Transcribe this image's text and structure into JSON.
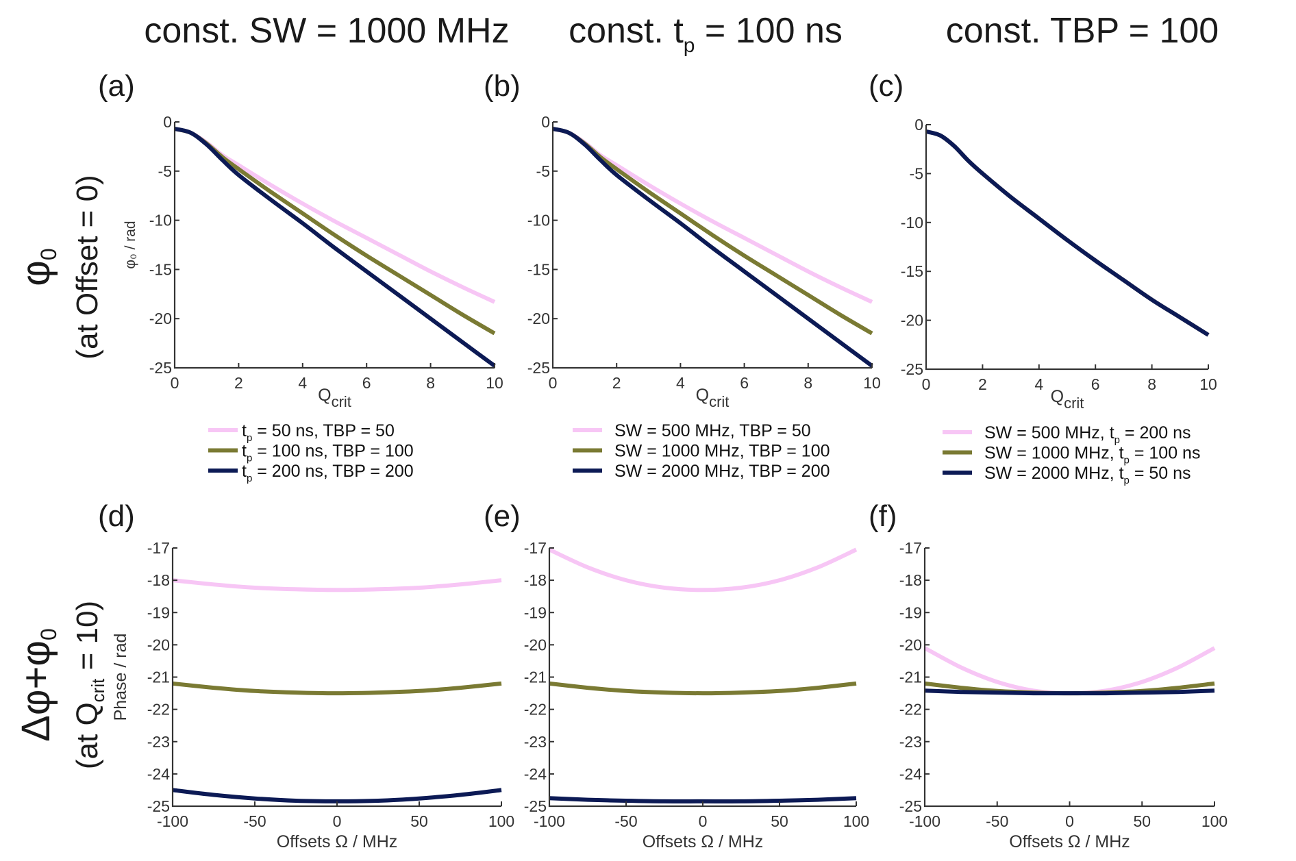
{
  "column_titles": [
    {
      "text": "const. SW = 1000 MHz"
    },
    {
      "pre": "const. t",
      "sub": "p",
      "post": " = 100 ns"
    },
    {
      "text": "const. TBP = 100"
    }
  ],
  "row_labels": [
    {
      "main": "φ",
      "main_sub": "0",
      "sub": "(at Offset = 0)"
    },
    {
      "main": "Δφ+φ",
      "main_sub": "0",
      "sub_pre": "(at Q",
      "sub_sub": "crit",
      "sub_post": " = 10)"
    }
  ],
  "colors": {
    "pink": "#f7c6f5",
    "olive": "#7a7a33",
    "navy": "#0c1a55"
  },
  "chart_data": [
    {
      "id": "a",
      "letter": "(a)",
      "type": "line",
      "xlabel": "Q",
      "xlabel_sub": "crit",
      "ylabel": "φ₀ / rad",
      "xlim": [
        0,
        10
      ],
      "ylim": [
        -25,
        0
      ],
      "xticks": [
        0,
        2,
        4,
        6,
        8,
        10
      ],
      "yticks": [
        0,
        -5,
        -10,
        -15,
        -20,
        -25
      ],
      "x": [
        0,
        0.5,
        1,
        1.5,
        2,
        3,
        4,
        5,
        6,
        7,
        8,
        9,
        10
      ],
      "series": [
        {
          "name": "t_p = 50 ns,   TBP = 50",
          "color": "pink",
          "legend": {
            "pre": "t",
            "sub": "p",
            "post": " = 50 ns,   TBP = 50"
          },
          "values": [
            -0.7,
            -1.1,
            -2.1,
            -3.4,
            -4.4,
            -6.4,
            -8.3,
            -10.1,
            -11.8,
            -13.5,
            -15.2,
            -16.8,
            -18.3
          ]
        },
        {
          "name": "t_p = 100 ns, TBP = 100",
          "color": "olive",
          "legend": {
            "pre": "t",
            "sub": "p",
            "post": " = 100 ns, TBP = 100"
          },
          "values": [
            -0.7,
            -1.1,
            -2.2,
            -3.6,
            -4.8,
            -7.1,
            -9.3,
            -11.5,
            -13.6,
            -15.6,
            -17.6,
            -19.6,
            -21.5
          ]
        },
        {
          "name": "t_p = 200 ns, TBP = 200",
          "color": "navy",
          "legend": {
            "pre": "t",
            "sub": "p",
            "post": " = 200 ns, TBP = 200"
          },
          "values": [
            -0.7,
            -1.1,
            -2.3,
            -3.9,
            -5.4,
            -7.9,
            -10.3,
            -12.8,
            -15.2,
            -17.6,
            -20.0,
            -22.4,
            -24.8
          ]
        }
      ]
    },
    {
      "id": "b",
      "letter": "(b)",
      "type": "line",
      "xlabel": "Q",
      "xlabel_sub": "crit",
      "ylabel": "",
      "xlim": [
        0,
        10
      ],
      "ylim": [
        -25,
        0
      ],
      "xticks": [
        0,
        2,
        4,
        6,
        8,
        10
      ],
      "yticks": [
        0,
        -5,
        -10,
        -15,
        -20,
        -25
      ],
      "x": [
        0,
        0.5,
        1,
        1.5,
        2,
        3,
        4,
        5,
        6,
        7,
        8,
        9,
        10
      ],
      "series": [
        {
          "name": "SW = 500 MHz,   TBP = 50",
          "color": "pink",
          "legend": {
            "pre": "SW = 500 MHz,   TBP = 50"
          },
          "values": [
            -0.7,
            -1.1,
            -2.1,
            -3.4,
            -4.4,
            -6.4,
            -8.3,
            -10.1,
            -11.8,
            -13.5,
            -15.2,
            -16.8,
            -18.3
          ]
        },
        {
          "name": "SW = 1000 MHz, TBP = 100",
          "color": "olive",
          "legend": {
            "pre": "SW = 1000 MHz, TBP = 100"
          },
          "values": [
            -0.7,
            -1.1,
            -2.2,
            -3.6,
            -4.8,
            -7.1,
            -9.3,
            -11.5,
            -13.6,
            -15.6,
            -17.6,
            -19.6,
            -21.5
          ]
        },
        {
          "name": "SW = 2000 MHz, TBP = 200",
          "color": "navy",
          "legend": {
            "pre": "SW = 2000 MHz, TBP = 200"
          },
          "values": [
            -0.7,
            -1.1,
            -2.3,
            -3.9,
            -5.4,
            -7.9,
            -10.3,
            -12.8,
            -15.2,
            -17.6,
            -20.0,
            -22.4,
            -24.8
          ]
        }
      ]
    },
    {
      "id": "c",
      "letter": "(c)",
      "type": "line",
      "xlabel": "Q",
      "xlabel_sub": "crit",
      "ylabel": "",
      "xlim": [
        0,
        10
      ],
      "ylim": [
        -25,
        0
      ],
      "xticks": [
        0,
        2,
        4,
        6,
        8,
        10
      ],
      "yticks": [
        0,
        -5,
        -10,
        -15,
        -20,
        -25
      ],
      "x": [
        0,
        0.5,
        1,
        1.5,
        2,
        3,
        4,
        5,
        6,
        7,
        8,
        9,
        10
      ],
      "series": [
        {
          "name": "SW = 500 MHz,   t_p = 200 ns",
          "color": "pink",
          "legend": {
            "pre": "SW = 500 MHz,   t",
            "sub": "p",
            "post": " = 200 ns"
          },
          "values": [
            -0.7,
            -1.1,
            -2.2,
            -3.7,
            -5.0,
            -7.4,
            -9.6,
            -11.8,
            -13.9,
            -15.9,
            -17.9,
            -19.7,
            -21.5
          ]
        },
        {
          "name": "SW = 1000 MHz, t_p = 100 ns",
          "color": "olive",
          "legend": {
            "pre": "SW = 1000 MHz, t",
            "sub": "p",
            "post": " = 100 ns"
          },
          "values": [
            -0.7,
            -1.1,
            -2.2,
            -3.7,
            -5.0,
            -7.4,
            -9.6,
            -11.8,
            -13.9,
            -15.9,
            -17.9,
            -19.7,
            -21.5
          ]
        },
        {
          "name": "SW = 2000 MHz, t_p = 50 ns",
          "color": "navy",
          "legend": {
            "pre": "SW = 2000 MHz, t",
            "sub": "p",
            "post": " = 50 ns"
          },
          "values": [
            -0.7,
            -1.1,
            -2.2,
            -3.7,
            -5.0,
            -7.4,
            -9.6,
            -11.8,
            -13.9,
            -15.9,
            -17.9,
            -19.7,
            -21.5
          ]
        }
      ]
    },
    {
      "id": "d",
      "letter": "(d)",
      "type": "line",
      "xlabel": "Offsets Ω / MHz",
      "ylabel": "Phase / rad",
      "xlim": [
        -100,
        100
      ],
      "ylim": [
        -25,
        -17
      ],
      "xticks": [
        -100,
        -50,
        0,
        50,
        100
      ],
      "yticks": [
        -17,
        -18,
        -19,
        -20,
        -21,
        -22,
        -23,
        -24,
        -25
      ],
      "x": [
        -100,
        -75,
        -50,
        -25,
        0,
        25,
        50,
        75,
        100
      ],
      "series": [
        {
          "color": "pink",
          "values": [
            -18.0,
            -18.13,
            -18.23,
            -18.28,
            -18.3,
            -18.28,
            -18.23,
            -18.13,
            -18.0
          ]
        },
        {
          "color": "olive",
          "values": [
            -21.2,
            -21.33,
            -21.43,
            -21.48,
            -21.5,
            -21.48,
            -21.43,
            -21.33,
            -21.2
          ]
        },
        {
          "color": "navy",
          "values": [
            -24.5,
            -24.65,
            -24.76,
            -24.83,
            -24.85,
            -24.83,
            -24.76,
            -24.65,
            -24.5
          ]
        }
      ]
    },
    {
      "id": "e",
      "letter": "(e)",
      "type": "line",
      "xlabel": "Offsets Ω / MHz",
      "ylabel": "",
      "xlim": [
        -100,
        100
      ],
      "ylim": [
        -25,
        -17
      ],
      "xticks": [
        -100,
        -50,
        0,
        50,
        100
      ],
      "yticks": [
        -17,
        -18,
        -19,
        -20,
        -21,
        -22,
        -23,
        -24,
        -25
      ],
      "x": [
        -100,
        -75,
        -50,
        -25,
        0,
        25,
        50,
        75,
        100
      ],
      "series": [
        {
          "color": "pink",
          "values": [
            -17.05,
            -17.6,
            -18.0,
            -18.23,
            -18.3,
            -18.23,
            -18.0,
            -17.6,
            -17.05
          ]
        },
        {
          "color": "olive",
          "values": [
            -21.2,
            -21.33,
            -21.43,
            -21.48,
            -21.5,
            -21.48,
            -21.43,
            -21.33,
            -21.2
          ]
        },
        {
          "color": "navy",
          "values": [
            -24.75,
            -24.8,
            -24.83,
            -24.85,
            -24.85,
            -24.85,
            -24.83,
            -24.8,
            -24.75
          ]
        }
      ]
    },
    {
      "id": "f",
      "letter": "(f)",
      "type": "line",
      "xlabel": "Offsets Ω / MHz",
      "ylabel": "",
      "xlim": [
        -100,
        100
      ],
      "ylim": [
        -25,
        -17
      ],
      "xticks": [
        -100,
        -50,
        0,
        50,
        100
      ],
      "yticks": [
        -17,
        -18,
        -19,
        -20,
        -21,
        -22,
        -23,
        -24,
        -25
      ],
      "x": [
        -100,
        -75,
        -50,
        -25,
        0,
        25,
        50,
        75,
        100
      ],
      "series": [
        {
          "color": "pink",
          "values": [
            -20.1,
            -20.7,
            -21.15,
            -21.42,
            -21.5,
            -21.42,
            -21.15,
            -20.7,
            -20.1
          ]
        },
        {
          "color": "olive",
          "values": [
            -21.2,
            -21.33,
            -21.43,
            -21.48,
            -21.5,
            -21.48,
            -21.43,
            -21.33,
            -21.2
          ]
        },
        {
          "color": "navy",
          "values": [
            -21.42,
            -21.46,
            -21.48,
            -21.5,
            -21.5,
            -21.5,
            -21.48,
            -21.46,
            -21.42
          ]
        }
      ]
    }
  ]
}
